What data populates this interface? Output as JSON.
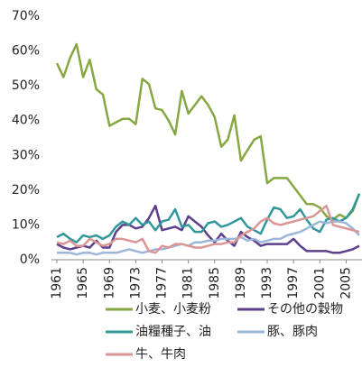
{
  "chart_data": {
    "type": "line",
    "x": [
      1961,
      1962,
      1963,
      1964,
      1965,
      1966,
      1967,
      1968,
      1969,
      1970,
      1971,
      1972,
      1973,
      1974,
      1975,
      1976,
      1977,
      1978,
      1979,
      1980,
      1981,
      1982,
      1983,
      1984,
      1985,
      1986,
      1987,
      1988,
      1989,
      1990,
      1991,
      1992,
      1993,
      1994,
      1995,
      1996,
      1997,
      1998,
      1999,
      2000,
      2001,
      2002,
      2003,
      2004,
      2005,
      2006,
      2007
    ],
    "xlim": [
      1961,
      2007
    ],
    "xticks": [
      1961,
      1965,
      1969,
      1973,
      1977,
      1981,
      1985,
      1989,
      1993,
      1997,
      2001,
      2005
    ],
    "ylim": [
      0,
      70
    ],
    "yticks": [
      {
        "value": 0,
        "label": "0%"
      },
      {
        "value": 10,
        "label": "10%"
      },
      {
        "value": 20,
        "label": "20%"
      },
      {
        "value": 30,
        "label": "30%"
      },
      {
        "value": 40,
        "label": "40%"
      },
      {
        "value": 50,
        "label": "50%"
      },
      {
        "value": 60,
        "label": "60%"
      },
      {
        "value": 70,
        "label": "70%"
      }
    ],
    "grid": false,
    "series": [
      {
        "name": "小麦、小麦粉",
        "color": "#86a843",
        "values": [
          56.5,
          52.5,
          58,
          62,
          52.5,
          57.5,
          49,
          47.5,
          38.5,
          39.5,
          40.5,
          40.5,
          39,
          52,
          50.5,
          43.5,
          43,
          40,
          36,
          48.5,
          42,
          44.5,
          47,
          44.5,
          41,
          32.5,
          34.5,
          41.5,
          28.5,
          31.5,
          34.5,
          35.5,
          22,
          23.5,
          23.5,
          23.5,
          21,
          18.5,
          16,
          16,
          15,
          12.5,
          11.5,
          13,
          12,
          14,
          19
        ]
      },
      {
        "name": "その他の穀物",
        "color": "#5d3f8c",
        "values": [
          4.5,
          3.5,
          3,
          3.5,
          4,
          3.5,
          5.5,
          3.5,
          3.5,
          8,
          10,
          10,
          9,
          9.5,
          12,
          15.5,
          8.5,
          9,
          9.5,
          8.5,
          12.5,
          11,
          9.5,
          7,
          5,
          7.5,
          5.5,
          4,
          8,
          6.5,
          5.5,
          4,
          4.5,
          4.5,
          4.5,
          4.5,
          6,
          4,
          2.5,
          2.5,
          2.5,
          2.5,
          2,
          2,
          2.5,
          3,
          4
        ]
      },
      {
        "name": "油糧種子、油",
        "color": "#31979b",
        "values": [
          6.5,
          7.5,
          6,
          5,
          7,
          6.5,
          7,
          6,
          7,
          9.5,
          11,
          10,
          12,
          10,
          11,
          8.5,
          11,
          11.5,
          14.5,
          9.5,
          10,
          8,
          8,
          10.5,
          11,
          9.5,
          10,
          11,
          12,
          9.5,
          8.5,
          7.5,
          11.5,
          15,
          14.5,
          12,
          12.5,
          14.5,
          11.5,
          9,
          8,
          11.5,
          12,
          11,
          12,
          14.5,
          19
        ]
      },
      {
        "name": "豚、豚肉",
        "color": "#9cb6d9",
        "values": [
          2,
          2,
          2,
          1.5,
          2,
          2,
          1.5,
          2,
          2,
          2,
          2.5,
          3,
          2.5,
          2,
          2.5,
          3,
          3,
          3.5,
          4,
          4.5,
          4,
          5,
          5,
          5.5,
          5.5,
          6,
          6,
          6,
          6.5,
          5.5,
          6,
          5,
          5.5,
          6,
          6,
          7,
          7.5,
          8,
          9,
          10,
          11,
          10.5,
          11,
          11,
          10.5,
          9,
          7
        ]
      },
      {
        "name": "牛、牛肉",
        "color": "#d99694",
        "values": [
          5,
          4.5,
          5.5,
          4,
          4,
          6,
          5,
          4,
          4.5,
          6,
          6,
          5.5,
          5,
          6,
          2.5,
          2,
          4,
          3.5,
          4.5,
          4.5,
          4,
          3.5,
          3.5,
          4,
          4.5,
          4.5,
          5,
          5,
          7,
          8,
          9,
          11,
          12,
          10.5,
          10,
          10.5,
          11,
          11.5,
          12,
          12.5,
          14,
          15.5,
          10,
          9.5,
          9,
          8.5,
          8
        ]
      }
    ]
  }
}
